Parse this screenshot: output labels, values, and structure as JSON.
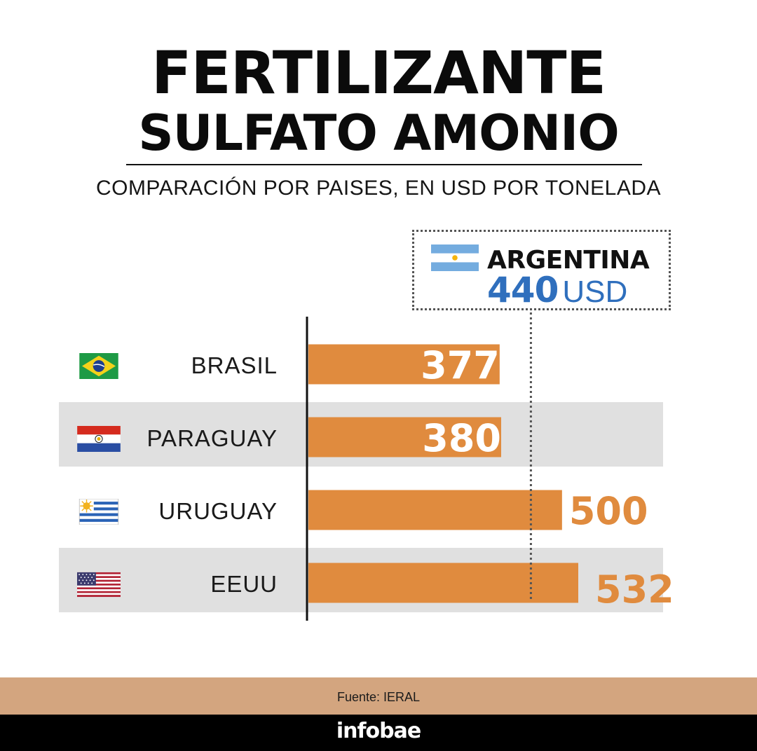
{
  "title_line1": "FERTILIZANTE",
  "title_line2": "SULFATO AMONIO",
  "subtitle": "COMPARACIÓN POR PAISES, EN USD POR TONELADA",
  "reference": {
    "country": "ARGENTINA",
    "value": 440,
    "value_label": "440",
    "unit": "USD"
  },
  "colors": {
    "bar": "#e08b3e",
    "stripe": "#e0e0e0",
    "reference_text": "#2f6fbd",
    "footer": "#d3a57f"
  },
  "chart_data": {
    "type": "bar",
    "orientation": "horizontal",
    "categories": [
      "BRASIL",
      "PARAGUAY",
      "URUGUAY",
      "EEUU"
    ],
    "values": [
      377,
      380,
      500,
      532
    ],
    "value_labels": [
      "377",
      "380",
      "500",
      "532"
    ],
    "flags": [
      "brazil-flag-icon",
      "paraguay-flag-icon",
      "uruguay-flag-icon",
      "usa-flag-icon"
    ],
    "reference_line": 440,
    "xlim": [
      0,
      532
    ],
    "grid": false
  },
  "footer": {
    "source": "Fuente: IERAL",
    "brand": "infobae"
  }
}
